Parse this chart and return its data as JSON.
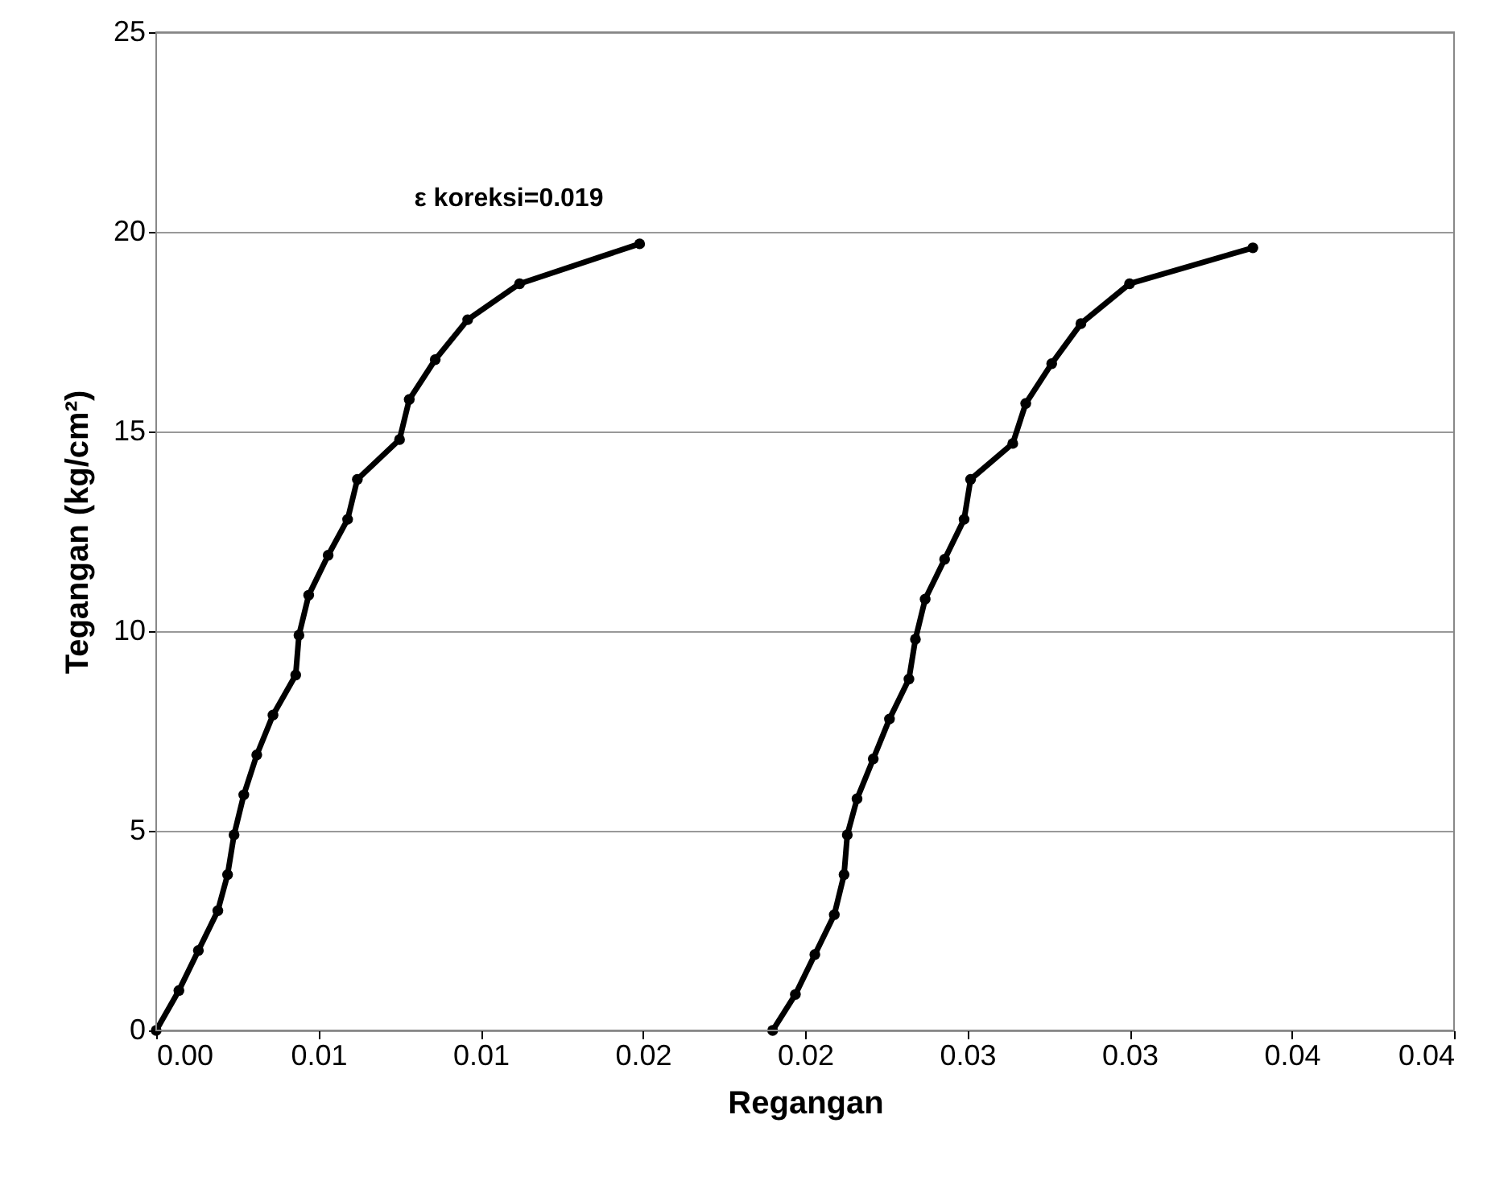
{
  "chart_data": {
    "type": "line",
    "xlabel": "Regangan",
    "ylabel": "Tegangan (kg/cm²)",
    "annotations": [
      "ε koreksi=0.019"
    ],
    "series": [
      {
        "color": "#000000",
        "x": [
          0,
          0.0007,
          0.0013,
          0.0019,
          0.0022,
          0.0024,
          0.0027,
          0.0031,
          0.0036,
          0.0043,
          0.0044,
          0.0047,
          0.0053,
          0.0059,
          0.0062,
          0.0075,
          0.0078,
          0.0086,
          0.0096,
          0.0112,
          0.0149
        ],
        "values": [
          0,
          1.0,
          2.0,
          3.0,
          3.9,
          4.9,
          5.9,
          6.9,
          7.9,
          8.9,
          9.9,
          10.9,
          11.9,
          12.8,
          13.8,
          14.8,
          15.8,
          16.8,
          17.8,
          18.7,
          19.7
        ]
      },
      {
        "color": "#000000",
        "x": [
          0.019,
          0.0197,
          0.0203,
          0.0209,
          0.0212,
          0.0213,
          0.0216,
          0.0221,
          0.0226,
          0.0232,
          0.0234,
          0.0237,
          0.0243,
          0.0249,
          0.0251,
          0.0264,
          0.0268,
          0.0276,
          0.0285,
          0.03,
          0.0338
        ],
        "values": [
          0,
          0.9,
          1.9,
          2.9,
          3.9,
          4.9,
          5.8,
          6.8,
          7.8,
          8.8,
          9.8,
          10.8,
          11.8,
          12.8,
          13.8,
          14.7,
          15.7,
          16.7,
          17.7,
          18.7,
          19.6
        ]
      }
    ],
    "xlim": [
      0,
      0.04
    ],
    "xticks": [
      {
        "value": 0,
        "label": "0.00"
      },
      {
        "value": 0.005,
        "label": "0.01"
      },
      {
        "value": 0.01,
        "label": "0.01"
      },
      {
        "value": 0.015,
        "label": "0.02"
      },
      {
        "value": 0.02,
        "label": "0.02"
      },
      {
        "value": 0.025,
        "label": "0.03"
      },
      {
        "value": 0.03,
        "label": "0.03"
      },
      {
        "value": 0.035,
        "label": "0.04"
      },
      {
        "value": 0.04,
        "label": "0.04"
      }
    ],
    "ylim": [
      0,
      25
    ],
    "yticks": [
      0,
      5,
      10,
      15,
      20,
      25
    ],
    "grid": "y",
    "marker": "circle",
    "line_style": "solid"
  }
}
